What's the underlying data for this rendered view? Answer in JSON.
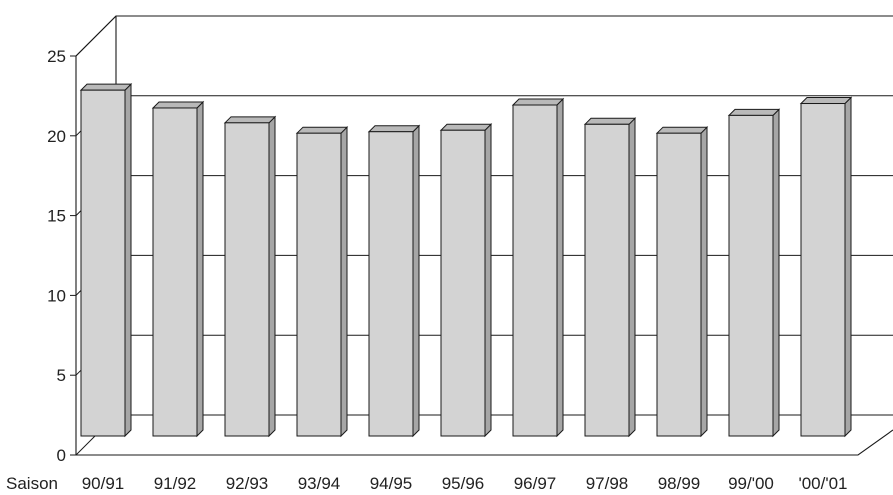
{
  "chart_data": {
    "type": "bar",
    "title": "",
    "xlabel": "Saison",
    "ylabel": "",
    "categories": [
      "90/91",
      "91/92",
      "92/93",
      "93/94",
      "94/95",
      "95/96",
      "96/97",
      "97/98",
      "98/99",
      "99/'00",
      "'00/'01"
    ],
    "values": [
      23.3,
      22.1,
      21.1,
      20.4,
      20.5,
      20.6,
      22.3,
      21.0,
      20.4,
      21.6,
      22.4
    ],
    "ylim": [
      0,
      25
    ],
    "yticks": [
      "0",
      "5",
      "10",
      "15",
      "20",
      "25"
    ],
    "grid": true,
    "style": "3d",
    "colors": {
      "bar_front": "#d3d3d3",
      "bar_side": "#a6a6a6",
      "bar_top": "#b9b9b9",
      "line": "#1a1a1a"
    }
  }
}
